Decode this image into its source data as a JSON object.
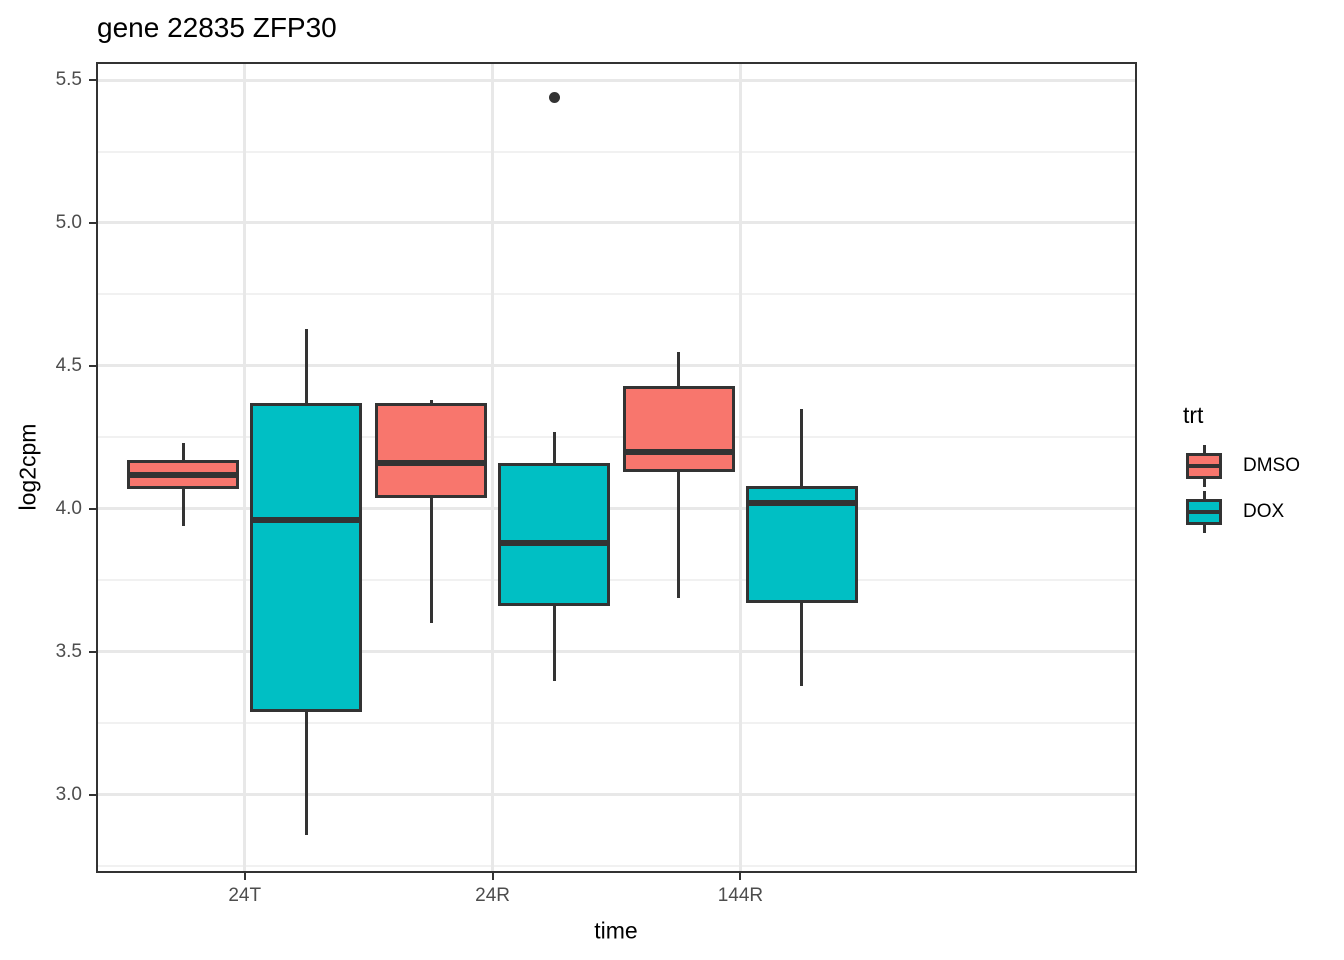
{
  "chart_data": {
    "type": "boxplot",
    "title": "gene 22835 ZFP30",
    "xlabel": "time",
    "ylabel": "log2cpm",
    "categories": [
      "24T",
      "24R",
      "144R"
    ],
    "y_tick_labels": [
      "5.5",
      "5.0",
      "4.5",
      "4.0",
      "3.5",
      "3.0"
    ],
    "y_ticks": [
      5.5,
      5.0,
      4.5,
      4.0,
      3.5,
      3.0
    ],
    "y_minor_ticks": [
      5.25,
      4.75,
      4.25,
      3.75,
      3.25,
      2.75
    ],
    "ylim": [
      2.727,
      5.563
    ],
    "grid": "major-and-minor",
    "legend": {
      "title": "trt",
      "position": "right",
      "entries": [
        "DMSO",
        "DOX"
      ]
    },
    "series": [
      {
        "name": "DMSO",
        "color": "#F8766D",
        "boxes": [
          {
            "category": "24T",
            "whisker_low": 3.94,
            "q1": 4.07,
            "median": 4.12,
            "q3": 4.17,
            "whisker_high": 4.23,
            "outliers": []
          },
          {
            "category": "24R",
            "whisker_low": 3.6,
            "q1": 4.04,
            "median": 4.16,
            "q3": 4.37,
            "whisker_high": 4.38,
            "outliers": []
          },
          {
            "category": "144R",
            "whisker_low": 3.69,
            "q1": 4.13,
            "median": 4.2,
            "q3": 4.43,
            "whisker_high": 4.55,
            "outliers": []
          }
        ]
      },
      {
        "name": "DOX",
        "color": "#00BFC4",
        "boxes": [
          {
            "category": "24T",
            "whisker_low": 2.86,
            "q1": 3.29,
            "median": 3.96,
            "q3": 4.37,
            "whisker_high": 4.63,
            "outliers": []
          },
          {
            "category": "24R",
            "whisker_low": 3.4,
            "q1": 3.66,
            "median": 3.88,
            "q3": 4.16,
            "whisker_high": 4.27,
            "outliers": [
              5.44
            ]
          },
          {
            "category": "144R",
            "whisker_low": 3.38,
            "q1": 3.67,
            "median": 4.02,
            "q3": 4.08,
            "whisker_high": 4.35,
            "outliers": []
          }
        ]
      }
    ],
    "colors": {
      "box_border": "#333333",
      "median": "#333333",
      "whisker": "#333333",
      "outlier": "#333333",
      "grid_major": "#E8E8E8",
      "grid_minor": "#F1F1F1",
      "panel_border": "#333333",
      "tick_label": "#4D4D4D",
      "background": "#FFFFFF"
    }
  }
}
